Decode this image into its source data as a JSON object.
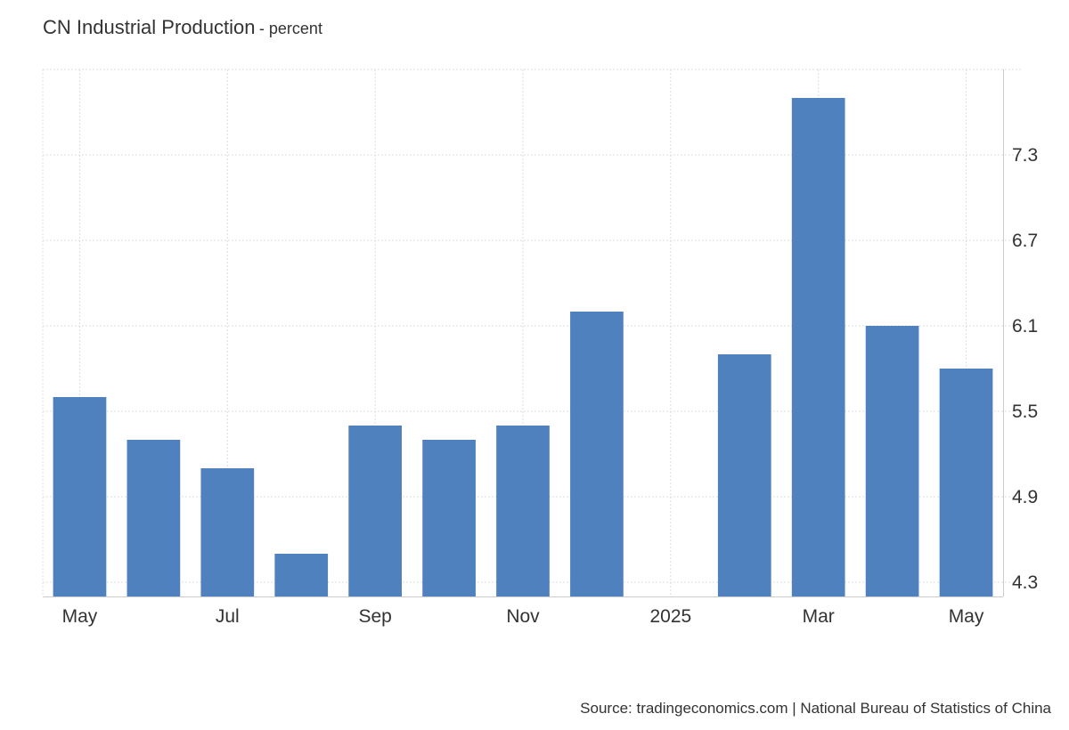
{
  "title": {
    "main": "CN Industrial Production",
    "sub": "- percent"
  },
  "source": "Source: tradingeconomics.com | National Bureau of Statistics of China",
  "chart_data": {
    "type": "bar",
    "categories": [
      "2024-05",
      "2024-06",
      "2024-07",
      "2024-08",
      "2024-09",
      "2024-10",
      "2024-11",
      "2024-12",
      "2025-01",
      "2025-02",
      "2025-03",
      "2025-04",
      "2025-05"
    ],
    "values": [
      5.6,
      5.3,
      5.1,
      4.5,
      5.4,
      5.3,
      5.4,
      6.2,
      null,
      5.9,
      7.7,
      6.1,
      5.8
    ],
    "x_tick_labels": [
      {
        "category": "2024-05",
        "label": "May"
      },
      {
        "category": "2024-07",
        "label": "Jul"
      },
      {
        "category": "2024-09",
        "label": "Sep"
      },
      {
        "category": "2024-11",
        "label": "Nov"
      },
      {
        "category": "2025-01",
        "label": "2025"
      },
      {
        "category": "2025-03",
        "label": "Mar"
      },
      {
        "category": "2025-05",
        "label": "May"
      }
    ],
    "y_ticks": [
      4.3,
      4.9,
      5.5,
      6.1,
      6.7,
      7.3
    ],
    "ylim": [
      4.2,
      7.9
    ],
    "y_axis_position": "right",
    "grid": true,
    "bar_color": "#4e81bd",
    "grid_color": "#dddddd",
    "axis_color": "#cccccc"
  }
}
